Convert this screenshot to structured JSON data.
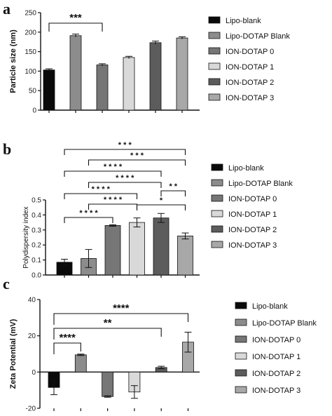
{
  "chart_data": [
    {
      "panel": "a",
      "type": "bar",
      "categories": [
        "Lipo-blank",
        "Lipo-DOTAP Blank",
        "ION-DOTAP 0",
        "ION-DOTAP 1",
        "ION-DOTAP 2",
        "ION-DOTAP 3"
      ],
      "values": [
        103,
        191,
        116,
        135,
        173,
        185
      ],
      "errors": [
        3,
        4,
        3,
        3,
        4,
        3
      ],
      "colors": [
        "#0a0a0a",
        "#8c8c8c",
        "#767676",
        "#d9d9d9",
        "#5c5c5c",
        "#a8a8a8"
      ],
      "ylabel": "Particle size (nm)",
      "ylim": [
        0,
        250
      ],
      "yticks": [
        "0",
        "50",
        "100",
        "150",
        "200",
        "250"
      ],
      "legend": [
        "Lipo-blank",
        "Lipo-DOTAP Blank",
        "ION-DOTAP 0",
        "ION-DOTAP 1",
        "ION-DOTAP 2",
        "ION-DOTAP 3"
      ],
      "brackets": [
        {
          "from": 0,
          "to": 2,
          "label": "***"
        }
      ]
    },
    {
      "panel": "b",
      "type": "bar",
      "categories": [
        "Lipo-blank",
        "Lipo-DOTAP Blank",
        "ION-DOTAP 0",
        "ION-DOTAP 1",
        "ION-DOTAP 2",
        "ION-DOTAP 3"
      ],
      "values": [
        0.085,
        0.11,
        0.33,
        0.35,
        0.38,
        0.26
      ],
      "errors": [
        0.02,
        0.06,
        0.005,
        0.03,
        0.03,
        0.02
      ],
      "colors": [
        "#0a0a0a",
        "#8c8c8c",
        "#767676",
        "#d9d9d9",
        "#5c5c5c",
        "#a8a8a8"
      ],
      "ylabel": "Polydispersity index",
      "ylim": [
        0,
        0.5
      ],
      "yticks": [
        "0.0",
        "0.1",
        "0.2",
        "0.3",
        "0.4",
        "0.5"
      ],
      "legend": [
        "Lipo-blank",
        "Lipo-DOTAP Blank",
        "ION-DOTAP 0",
        "ION-DOTAP 1",
        "ION-DOTAP 2",
        "ION-DOTAP 3"
      ],
      "brackets": [
        {
          "from": 0,
          "to": 5,
          "label": "* * *"
        },
        {
          "from": 1,
          "to": 5,
          "label": "* * *"
        },
        {
          "from": 0,
          "to": 4,
          "label": "* * * *"
        },
        {
          "from": 1,
          "to": 4,
          "label": "* * * *"
        },
        {
          "from": 0,
          "to": 3,
          "label": "* * * *"
        },
        {
          "from": 4,
          "to": 5,
          "label": "* *"
        },
        {
          "from": 1,
          "to": 3,
          "label": "* * * *"
        },
        {
          "from": 3,
          "to": 5,
          "label": "*"
        },
        {
          "from": 0,
          "to": 2,
          "label": "* * * *"
        }
      ]
    },
    {
      "panel": "c",
      "type": "bar",
      "categories": [
        "Lipo-blank",
        "Lipo-DOTAP Blank",
        "ION-DOTAP 0",
        "ION-DOTAP 1",
        "ION-DOTAP 2",
        "ION-DOTAP 3"
      ],
      "values": [
        -8.5,
        9.5,
        -13.5,
        -11,
        2.5,
        16.5
      ],
      "errors": [
        4,
        0.4,
        0.4,
        3.5,
        0.7,
        5.5
      ],
      "colors": [
        "#0a0a0a",
        "#8c8c8c",
        "#767676",
        "#d9d9d9",
        "#5c5c5c",
        "#a8a8a8"
      ],
      "ylabel": "Zeta Potential (mV)",
      "ylim": [
        -20,
        40
      ],
      "yticks": [
        "-20",
        "0",
        "20",
        "40"
      ],
      "legend": [
        "Lipo-blank",
        "Lipo-DOTAP Blank",
        "ION-DOTAP 0",
        "ION-DOTAP 1",
        "ION-DOTAP 2",
        "ION-DOTAP 3"
      ],
      "brackets": [
        {
          "from": 0,
          "to": 5,
          "label": "****"
        },
        {
          "from": 0,
          "to": 4,
          "label": "**"
        },
        {
          "from": 0,
          "to": 1,
          "label": "****"
        }
      ]
    }
  ]
}
